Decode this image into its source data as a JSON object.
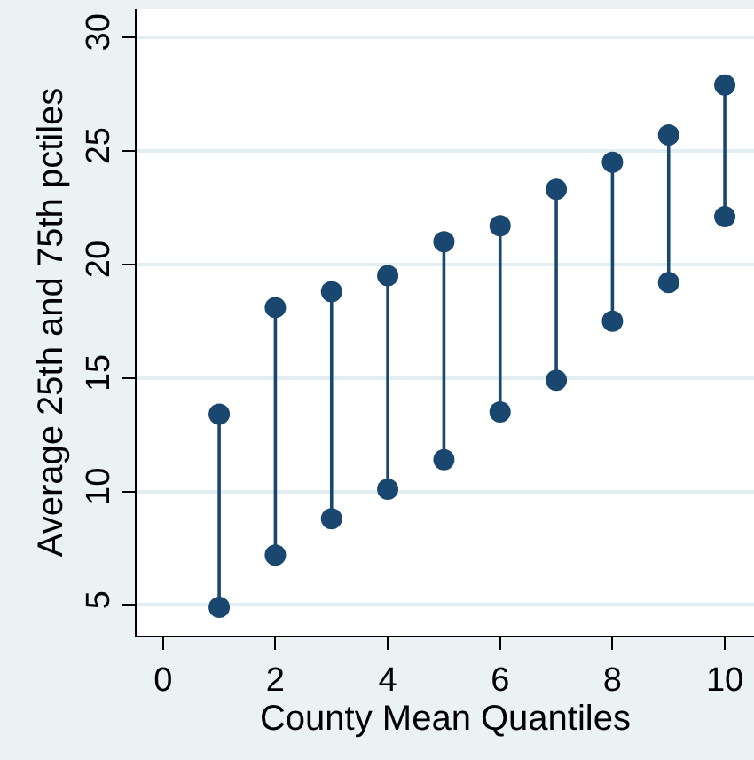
{
  "chart_data": {
    "type": "line",
    "xlabel": "County Mean Quantiles",
    "ylabel": "Average 25th and 75th pctiles",
    "series": [
      {
        "color": "#1a476f",
        "x": [
          1,
          1
        ],
        "values": [
          4.9,
          13.4
        ]
      },
      {
        "color": "#1a476f",
        "x": [
          2,
          2
        ],
        "values": [
          7.2,
          18.1
        ]
      },
      {
        "color": "#1a476f",
        "x": [
          3,
          3
        ],
        "values": [
          8.8,
          18.8
        ]
      },
      {
        "color": "#1a476f",
        "x": [
          4,
          4
        ],
        "values": [
          10.1,
          19.5
        ]
      },
      {
        "color": "#1a476f",
        "x": [
          5,
          5
        ],
        "values": [
          11.4,
          21.0
        ]
      },
      {
        "color": "#1a476f",
        "x": [
          6,
          6
        ],
        "values": [
          13.5,
          21.7
        ]
      },
      {
        "color": "#1a476f",
        "x": [
          7,
          7
        ],
        "values": [
          14.9,
          23.3
        ]
      },
      {
        "color": "#1a476f",
        "x": [
          8,
          8
        ],
        "values": [
          17.5,
          24.5
        ]
      },
      {
        "color": "#1a476f",
        "x": [
          9,
          9
        ],
        "values": [
          19.2,
          25.7
        ]
      },
      {
        "color": "#1a476f",
        "x": [
          10,
          10
        ],
        "values": [
          22.1,
          27.9
        ]
      }
    ],
    "xlim": [
      -0.47,
      10.52
    ],
    "xticks": [
      0,
      2,
      4,
      6,
      8,
      10
    ],
    "ylim": [
      3.65,
      31.25
    ],
    "yticks": [
      5,
      10,
      15,
      20,
      25,
      30
    ],
    "grid": "y",
    "marker": "circle",
    "line_style": "solid"
  }
}
